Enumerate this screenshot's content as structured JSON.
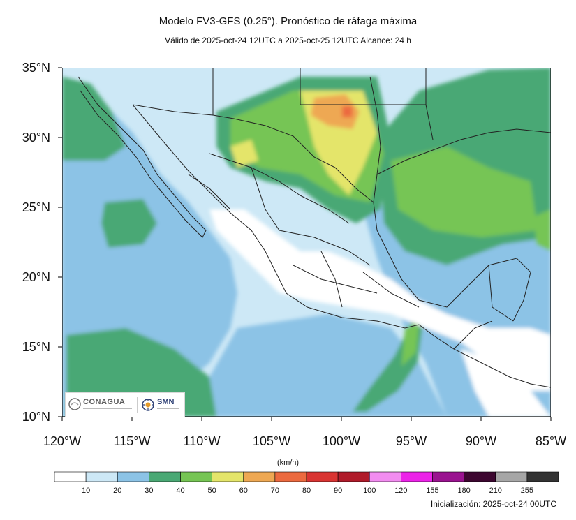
{
  "header": {
    "title": "Modelo FV3-GFS (0.25°). Pronóstico de ráfaga máxima",
    "subtitle": "Válido de 2025-oct-24 12UTC a 2025-oct-25 12UTC    Alcance: 24 h"
  },
  "map": {
    "lat_labels": [
      "35°N",
      "30°N",
      "25°N",
      "20°N",
      "15°N",
      "10°N"
    ],
    "lon_labels": [
      "120°W",
      "115°W",
      "110°W",
      "105°W",
      "100°W",
      "95°W",
      "90°W",
      "85°W"
    ]
  },
  "legend": {
    "units": "(km/h)",
    "levels": [
      "10",
      "20",
      "30",
      "40",
      "50",
      "60",
      "70",
      "80",
      "90",
      "100",
      "120",
      "155",
      "180",
      "210",
      "255"
    ],
    "colors": [
      "#ffffff",
      "#cde8f6",
      "#8cc3e6",
      "#4aa874",
      "#76c554",
      "#e4e56a",
      "#eea853",
      "#ec6a3f",
      "#d93432",
      "#b01b2a",
      "#f28cf0",
      "#ec23e8",
      "#9a1390",
      "#3d0730",
      "#a6a6a6",
      "#333333"
    ]
  },
  "logos": {
    "conagua": "CONAGUA",
    "smn": "SMN"
  },
  "footer": {
    "init": "Inicialización: 2025-oct-24 00UTC"
  }
}
